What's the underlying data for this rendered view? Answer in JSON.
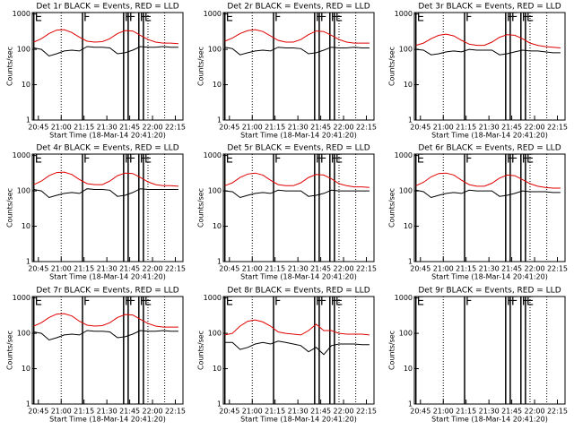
{
  "chart_data": [
    {
      "type": "line",
      "title": "Det 1r BLACK = Events, RED = LLD",
      "xlabel": "Start Time (18-Mar-14 20:41:20)",
      "ylabel": "Counts/sec",
      "log_y": true,
      "xlim": [
        "20:41",
        "22:20"
      ],
      "xticks": [
        "20:45",
        "21:00",
        "21:15",
        "21:30",
        "21:45",
        "22:00",
        "22:15"
      ],
      "ylim": [
        1,
        1100
      ],
      "yticks": [
        1,
        10,
        100,
        1000
      ],
      "x": [
        "20:42",
        "20:47",
        "20:52",
        "20:57",
        "21:02",
        "21:07",
        "21:12",
        "21:17",
        "21:22",
        "21:27",
        "21:32",
        "21:37",
        "21:42",
        "21:47",
        "21:52",
        "21:57",
        "22:02",
        "22:07",
        "22:12",
        "22:17"
      ],
      "series": [
        {
          "color": "#e00000",
          "values": [
            160,
            200,
            280,
            350,
            360,
            300,
            220,
            170,
            160,
            165,
            200,
            280,
            340,
            330,
            250,
            190,
            160,
            150,
            150,
            145
          ]
        },
        {
          "color": "#000000",
          "values": [
            110,
            100,
            65,
            75,
            90,
            95,
            90,
            120,
            115,
            115,
            110,
            75,
            80,
            95,
            120,
            115,
            115,
            120,
            115,
            115
          ]
        }
      ],
      "markers": [
        {
          "time": "20:42",
          "label": "E"
        },
        {
          "time": "21:14",
          "label": "F"
        },
        {
          "time": "21:41",
          "label": "F"
        },
        {
          "time": "21:44",
          "label": "F"
        },
        {
          "time": "21:51",
          "label": "F"
        },
        {
          "time": "21:54",
          "label": "E"
        }
      ],
      "dotted": [
        "21:00",
        "21:57",
        "22:08"
      ]
    },
    {
      "type": "line",
      "title": "Det 2r BLACK = Events, RED = LLD",
      "xlabel": "Start Time (18-Mar-14 20:41:20)",
      "ylabel": "Counts/sec",
      "log_y": true,
      "xlim": [
        "20:41",
        "22:20"
      ],
      "xticks": [
        "20:45",
        "21:00",
        "21:15",
        "21:30",
        "21:45",
        "22:00",
        "22:15"
      ],
      "ylim": [
        1,
        1100
      ],
      "yticks": [
        1,
        10,
        100,
        1000
      ],
      "x": [
        "20:42",
        "20:47",
        "20:52",
        "20:57",
        "21:02",
        "21:07",
        "21:12",
        "21:17",
        "21:22",
        "21:27",
        "21:32",
        "21:37",
        "21:42",
        "21:47",
        "21:52",
        "21:57",
        "22:02",
        "22:07",
        "22:12",
        "22:17"
      ],
      "series": [
        {
          "color": "#e00000",
          "values": [
            170,
            210,
            280,
            340,
            360,
            320,
            240,
            180,
            160,
            160,
            190,
            260,
            330,
            320,
            250,
            190,
            160,
            150,
            150,
            150
          ]
        },
        {
          "color": "#000000",
          "values": [
            115,
            105,
            70,
            80,
            90,
            95,
            90,
            115,
            110,
            110,
            105,
            75,
            80,
            95,
            115,
            110,
            110,
            115,
            110,
            110
          ]
        }
      ],
      "markers": [
        {
          "time": "20:42",
          "label": "E"
        },
        {
          "time": "21:14",
          "label": "F"
        },
        {
          "time": "21:41",
          "label": "F"
        },
        {
          "time": "21:44",
          "label": "F"
        },
        {
          "time": "21:51",
          "label": "F"
        },
        {
          "time": "21:54",
          "label": "E"
        }
      ],
      "dotted": [
        "21:00",
        "21:57",
        "22:08"
      ]
    },
    {
      "type": "line",
      "title": "Det 3r BLACK = Events, RED = LLD",
      "xlabel": "Start Time (18-Mar-14 20:41:20)",
      "ylabel": "Counts/sec",
      "log_y": true,
      "xlim": [
        "20:41",
        "22:20"
      ],
      "xticks": [
        "20:45",
        "21:00",
        "21:15",
        "21:30",
        "21:45",
        "22:00",
        "22:15"
      ],
      "ylim": [
        1,
        1100
      ],
      "yticks": [
        1,
        10,
        100,
        1000
      ],
      "x": [
        "20:42",
        "20:47",
        "20:52",
        "20:57",
        "21:02",
        "21:07",
        "21:12",
        "21:17",
        "21:22",
        "21:27",
        "21:32",
        "21:37",
        "21:42",
        "21:47",
        "21:52",
        "21:57",
        "22:02",
        "22:07",
        "22:12",
        "22:17"
      ],
      "series": [
        {
          "color": "#e00000",
          "values": [
            130,
            150,
            200,
            250,
            270,
            240,
            180,
            140,
            130,
            130,
            160,
            220,
            260,
            250,
            200,
            150,
            130,
            120,
            115,
            110
          ]
        },
        {
          "color": "#000000",
          "values": [
            100,
            95,
            70,
            75,
            85,
            90,
            85,
            100,
            95,
            95,
            95,
            70,
            75,
            85,
            95,
            90,
            90,
            85,
            80,
            80
          ]
        }
      ],
      "markers": [
        {
          "time": "20:42",
          "label": "E"
        },
        {
          "time": "21:14",
          "label": "F"
        },
        {
          "time": "21:41",
          "label": "F"
        },
        {
          "time": "21:44",
          "label": "F"
        },
        {
          "time": "21:51",
          "label": "F"
        },
        {
          "time": "21:54",
          "label": "E"
        }
      ],
      "dotted": [
        "21:00",
        "21:57",
        "22:08"
      ]
    },
    {
      "type": "line",
      "title": "Det 4r BLACK = Events, RED = LLD",
      "xlabel": "Start Time (18-Mar-14 20:41:20)",
      "ylabel": "Counts/sec",
      "log_y": true,
      "xlim": [
        "20:41",
        "22:20"
      ],
      "xticks": [
        "20:45",
        "21:00",
        "21:15",
        "21:30",
        "21:45",
        "22:00",
        "22:15"
      ],
      "ylim": [
        1,
        1100
      ],
      "yticks": [
        1,
        10,
        100,
        1000
      ],
      "x": [
        "20:42",
        "20:47",
        "20:52",
        "20:57",
        "21:02",
        "21:07",
        "21:12",
        "21:17",
        "21:22",
        "21:27",
        "21:32",
        "21:37",
        "21:42",
        "21:47",
        "21:52",
        "21:57",
        "22:02",
        "22:07",
        "22:12",
        "22:17"
      ],
      "series": [
        {
          "color": "#e00000",
          "values": [
            150,
            190,
            270,
            330,
            340,
            290,
            210,
            160,
            150,
            150,
            190,
            270,
            320,
            310,
            240,
            180,
            150,
            140,
            140,
            135
          ]
        },
        {
          "color": "#000000",
          "values": [
            110,
            100,
            65,
            75,
            85,
            90,
            85,
            115,
            110,
            110,
            105,
            70,
            75,
            90,
            115,
            110,
            110,
            110,
            110,
            110
          ]
        }
      ],
      "markers": [
        {
          "time": "20:42",
          "label": "E"
        },
        {
          "time": "21:14",
          "label": "F"
        },
        {
          "time": "21:41",
          "label": "F"
        },
        {
          "time": "21:44",
          "label": "F"
        },
        {
          "time": "21:51",
          "label": "F"
        },
        {
          "time": "21:54",
          "label": "E"
        }
      ],
      "dotted": [
        "21:00",
        "21:57",
        "22:08"
      ]
    },
    {
      "type": "line",
      "title": "Det 5r BLACK = Events, RED = LLD",
      "xlabel": "Start Time (18-Mar-14 20:41:20)",
      "ylabel": "Counts/sec",
      "log_y": true,
      "xlim": [
        "20:41",
        "22:20"
      ],
      "xticks": [
        "20:45",
        "21:00",
        "21:15",
        "21:30",
        "21:45",
        "22:00",
        "22:15"
      ],
      "ylim": [
        1,
        1100
      ],
      "yticks": [
        1,
        10,
        100,
        1000
      ],
      "x": [
        "20:42",
        "20:47",
        "20:52",
        "20:57",
        "21:02",
        "21:07",
        "21:12",
        "21:17",
        "21:22",
        "21:27",
        "21:32",
        "21:37",
        "21:42",
        "21:47",
        "21:52",
        "21:57",
        "22:02",
        "22:07",
        "22:12",
        "22:17"
      ],
      "series": [
        {
          "color": "#e00000",
          "values": [
            140,
            170,
            240,
            300,
            320,
            280,
            200,
            150,
            140,
            140,
            170,
            240,
            290,
            280,
            220,
            160,
            140,
            130,
            130,
            125
          ]
        },
        {
          "color": "#000000",
          "values": [
            100,
            95,
            65,
            75,
            85,
            90,
            85,
            105,
            100,
            100,
            100,
            70,
            75,
            85,
            105,
            100,
            100,
            100,
            100,
            100
          ]
        }
      ],
      "markers": [
        {
          "time": "20:42",
          "label": "E"
        },
        {
          "time": "21:14",
          "label": "F"
        },
        {
          "time": "21:41",
          "label": "F"
        },
        {
          "time": "21:44",
          "label": "F"
        },
        {
          "time": "21:51",
          "label": "F"
        },
        {
          "time": "21:54",
          "label": "E"
        }
      ],
      "dotted": [
        "21:00",
        "21:57",
        "22:08"
      ]
    },
    {
      "type": "line",
      "title": "Det 6r BLACK = Events, RED = LLD",
      "xlabel": "Start Time (18-Mar-14 20:41:20)",
      "ylabel": "Counts/sec",
      "log_y": true,
      "xlim": [
        "20:41",
        "22:20"
      ],
      "xticks": [
        "20:45",
        "21:00",
        "21:15",
        "21:30",
        "21:45",
        "22:00",
        "22:15"
      ],
      "ylim": [
        1,
        1100
      ],
      "yticks": [
        1,
        10,
        100,
        1000
      ],
      "x": [
        "20:42",
        "20:47",
        "20:52",
        "20:57",
        "21:02",
        "21:07",
        "21:12",
        "21:17",
        "21:22",
        "21:27",
        "21:32",
        "21:37",
        "21:42",
        "21:47",
        "21:52",
        "21:57",
        "22:02",
        "22:07",
        "22:12",
        "22:17"
      ],
      "series": [
        {
          "color": "#e00000",
          "values": [
            140,
            175,
            250,
            310,
            320,
            280,
            200,
            150,
            135,
            135,
            165,
            230,
            280,
            270,
            210,
            160,
            135,
            125,
            120,
            120
          ]
        },
        {
          "color": "#000000",
          "values": [
            105,
            95,
            65,
            75,
            85,
            90,
            85,
            105,
            100,
            100,
            100,
            70,
            75,
            85,
            100,
            95,
            95,
            95,
            90,
            90
          ]
        }
      ],
      "markers": [
        {
          "time": "20:42",
          "label": "E"
        },
        {
          "time": "21:14",
          "label": "F"
        },
        {
          "time": "21:41",
          "label": "F"
        },
        {
          "time": "21:44",
          "label": "F"
        },
        {
          "time": "21:51",
          "label": "F"
        },
        {
          "time": "21:54",
          "label": "E"
        }
      ],
      "dotted": [
        "21:00",
        "21:57",
        "22:08"
      ]
    },
    {
      "type": "line",
      "title": "Det 7r BLACK = Events, RED = LLD",
      "xlabel": "Start Time (18-Mar-14 20:41:20)",
      "ylabel": "Counts/sec",
      "log_y": true,
      "xlim": [
        "20:41",
        "22:20"
      ],
      "xticks": [
        "20:45",
        "21:00",
        "21:15",
        "21:30",
        "21:45",
        "22:00",
        "22:15"
      ],
      "ylim": [
        1,
        1100
      ],
      "yticks": [
        1,
        10,
        100,
        1000
      ],
      "x": [
        "20:42",
        "20:47",
        "20:52",
        "20:57",
        "21:02",
        "21:07",
        "21:12",
        "21:17",
        "21:22",
        "21:27",
        "21:32",
        "21:37",
        "21:42",
        "21:47",
        "21:52",
        "21:57",
        "22:02",
        "22:07",
        "22:12",
        "22:17"
      ],
      "series": [
        {
          "color": "#e00000",
          "values": [
            160,
            200,
            280,
            350,
            360,
            310,
            220,
            170,
            160,
            165,
            200,
            280,
            340,
            330,
            250,
            190,
            160,
            150,
            150,
            150
          ]
        },
        {
          "color": "#000000",
          "values": [
            110,
            100,
            65,
            75,
            90,
            95,
            90,
            120,
            115,
            115,
            110,
            75,
            80,
            95,
            120,
            115,
            115,
            120,
            115,
            115
          ]
        }
      ],
      "markers": [
        {
          "time": "20:42",
          "label": "E"
        },
        {
          "time": "21:14",
          "label": "F"
        },
        {
          "time": "21:41",
          "label": "F"
        },
        {
          "time": "21:44",
          "label": "F"
        },
        {
          "time": "21:51",
          "label": "F"
        },
        {
          "time": "21:54",
          "label": "E"
        }
      ],
      "dotted": [
        "21:00",
        "21:57",
        "22:08"
      ]
    },
    {
      "type": "line",
      "title": "Det 8r BLACK = Events, RED = LLD",
      "xlabel": "Start Time (18-Mar-14 20:41:20)",
      "ylabel": "Counts/sec",
      "log_y": true,
      "xlim": [
        "20:41",
        "22:20"
      ],
      "xticks": [
        "20:45",
        "21:00",
        "21:15",
        "21:30",
        "21:45",
        "22:00",
        "22:15"
      ],
      "ylim": [
        1,
        1100
      ],
      "yticks": [
        1,
        10,
        100,
        1000
      ],
      "x": [
        "20:42",
        "20:47",
        "20:52",
        "20:57",
        "21:02",
        "21:07",
        "21:12",
        "21:17",
        "21:22",
        "21:27",
        "21:32",
        "21:37",
        "21:42",
        "21:47",
        "21:52",
        "21:57",
        "22:02",
        "22:07",
        "22:12",
        "22:17"
      ],
      "series": [
        {
          "color": "#e00000",
          "values": [
            90,
            100,
            160,
            220,
            240,
            210,
            160,
            110,
            100,
            95,
            90,
            120,
            180,
            120,
            120,
            100,
            95,
            95,
            95,
            90
          ]
        },
        {
          "color": "#000000",
          "values": [
            55,
            55,
            35,
            40,
            50,
            55,
            50,
            60,
            55,
            50,
            45,
            30,
            40,
            25,
            45,
            50,
            50,
            50,
            48,
            48
          ]
        }
      ],
      "markers": [
        {
          "time": "20:42",
          "label": "E"
        },
        {
          "time": "21:14",
          "label": "F"
        },
        {
          "time": "21:41",
          "label": "F"
        },
        {
          "time": "21:44",
          "label": "F"
        },
        {
          "time": "21:51",
          "label": "F"
        },
        {
          "time": "21:54",
          "label": "E"
        }
      ],
      "dotted": [
        "21:00",
        "21:57",
        "22:08"
      ]
    },
    {
      "type": "line",
      "title": "Det 9r BLACK = Events, RED = LLD",
      "xlabel": "Start Time (18-Mar-14 20:41:20)",
      "ylabel": "Counts/sec",
      "log_y": true,
      "xlim": [
        "20:41",
        "22:20"
      ],
      "xticks": [
        "20:45",
        "21:00",
        "21:15",
        "21:30",
        "21:45",
        "22:00",
        "22:15"
      ],
      "ylim": [
        1,
        1100
      ],
      "yticks": [
        1,
        10,
        100,
        1000
      ],
      "x": [],
      "series": [],
      "markers": [
        {
          "time": "20:42",
          "label": "E"
        },
        {
          "time": "21:14",
          "label": "F"
        },
        {
          "time": "21:41",
          "label": "F"
        },
        {
          "time": "21:44",
          "label": "F"
        },
        {
          "time": "21:51",
          "label": "F"
        },
        {
          "time": "21:54",
          "label": "E"
        }
      ],
      "dotted": [
        "21:00",
        "21:57",
        "22:08"
      ]
    }
  ]
}
